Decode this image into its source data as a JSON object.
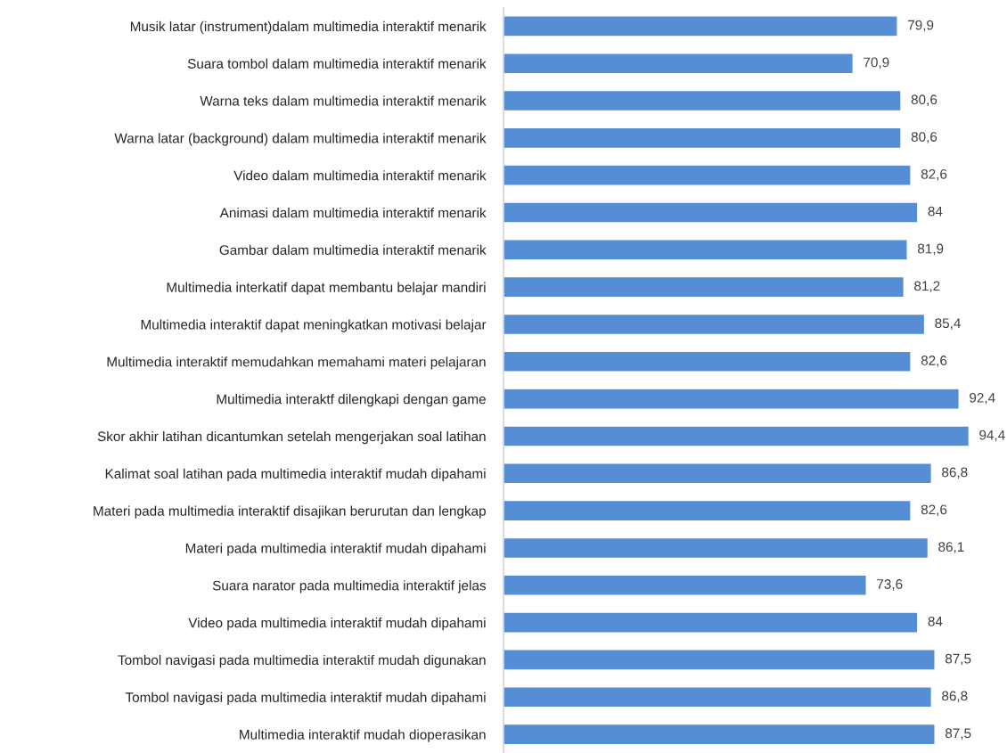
{
  "chart_data": {
    "type": "bar",
    "orientation": "horizontal",
    "categories": [
      "Musik latar (instrument)dalam multimedia interaktif menarik",
      "Suara tombol dalam multimedia interaktif menarik",
      "Warna teks dalam multimedia interaktif menarik",
      "Warna latar (background) dalam multimedia interaktif menarik",
      "Video dalam multimedia interaktif menarik",
      "Animasi dalam multimedia interaktif menarik",
      "Gambar dalam multimedia interaktif menarik",
      "Multimedia interkatif dapat membantu belajar mandiri",
      "Multimedia interaktif dapat meningkatkan motivasi belajar",
      "Multimedia interaktif memudahkan memahami materi pelajaran",
      "Multimedia interaktf dilengkapi dengan game",
      "Skor akhir latihan dicantumkan setelah mengerjakan soal latihan",
      "Kalimat soal latihan pada multimedia interaktif mudah dipahami",
      "Materi pada multimedia interaktif disajikan berurutan dan lengkap",
      "Materi pada multimedia interaktif mudah dipahami",
      "Suara narator pada multimedia interaktif jelas",
      "Video pada multimedia interaktif mudah dipahami",
      "Tombol navigasi pada multimedia interaktif mudah digunakan",
      "Tombol navigasi pada multimedia interaktif mudah dipahami",
      "Multimedia interaktif mudah dioperasikan"
    ],
    "values": [
      79.9,
      70.9,
      80.6,
      80.6,
      82.6,
      84,
      81.9,
      81.2,
      85.4,
      82.6,
      92.4,
      94.4,
      86.8,
      82.6,
      86.1,
      73.6,
      84,
      87.5,
      86.8,
      87.5
    ],
    "value_labels": [
      "79,9",
      "70,9",
      "80,6",
      "80,6",
      "82,6",
      "84",
      "81,9",
      "81,2",
      "85,4",
      "82,6",
      "92,4",
      "94,4",
      "86,8",
      "82,6",
      "86,1",
      "73,6",
      "84",
      "87,5",
      "86,8",
      "87,5"
    ],
    "color": "#558ed5",
    "tick_labels": "y"
  }
}
